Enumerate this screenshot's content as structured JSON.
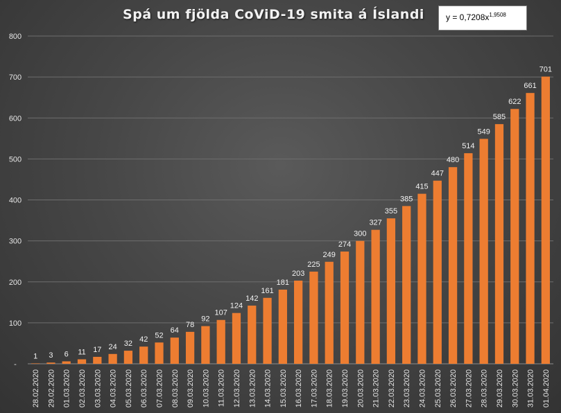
{
  "chart_data": {
    "type": "bar",
    "title": "Spá um fjölda CoViD-19 smita á Íslandi",
    "trendline_label": {
      "base": "y = 0,7208x",
      "exponent": "1,9508"
    },
    "categories": [
      "28.02.2020",
      "29.02.2020",
      "01.03.2020",
      "02.03.2020",
      "03.03.2020",
      "04.03.2020",
      "05.03.2020",
      "06.03.2020",
      "07.03.2020",
      "08.03.2020",
      "09.03.2020",
      "10.03.2020",
      "11.03.2020",
      "12.03.2020",
      "13.03.2020",
      "14.03.2020",
      "15.03.2020",
      "16.03.2020",
      "17.03.2020",
      "18.03.2020",
      "19.03.2020",
      "20.03.2020",
      "21.03.2020",
      "22.03.2020",
      "23.03.2020",
      "24.03.2020",
      "25.03.2020",
      "26.03.2020",
      "27.03.2020",
      "28.03.2020",
      "29.03.2020",
      "30.03.2020",
      "31.03.2020",
      "01.04.2020"
    ],
    "values": [
      1,
      3,
      6,
      11,
      17,
      24,
      32,
      42,
      52,
      64,
      78,
      92,
      107,
      124,
      142,
      161,
      181,
      203,
      225,
      249,
      274,
      300,
      327,
      355,
      385,
      415,
      447,
      480,
      514,
      549,
      585,
      622,
      661,
      701
    ],
    "ylim": [
      0,
      800
    ],
    "yticks": [
      0,
      100,
      200,
      300,
      400,
      500,
      600,
      700,
      800
    ],
    "ytick_labels": [
      "-",
      "100",
      "200",
      "300",
      "400",
      "500",
      "600",
      "700",
      "800"
    ],
    "xlabel": "",
    "ylabel": "",
    "grid": true,
    "legend": "none",
    "bar_color": "#ed7d31"
  }
}
